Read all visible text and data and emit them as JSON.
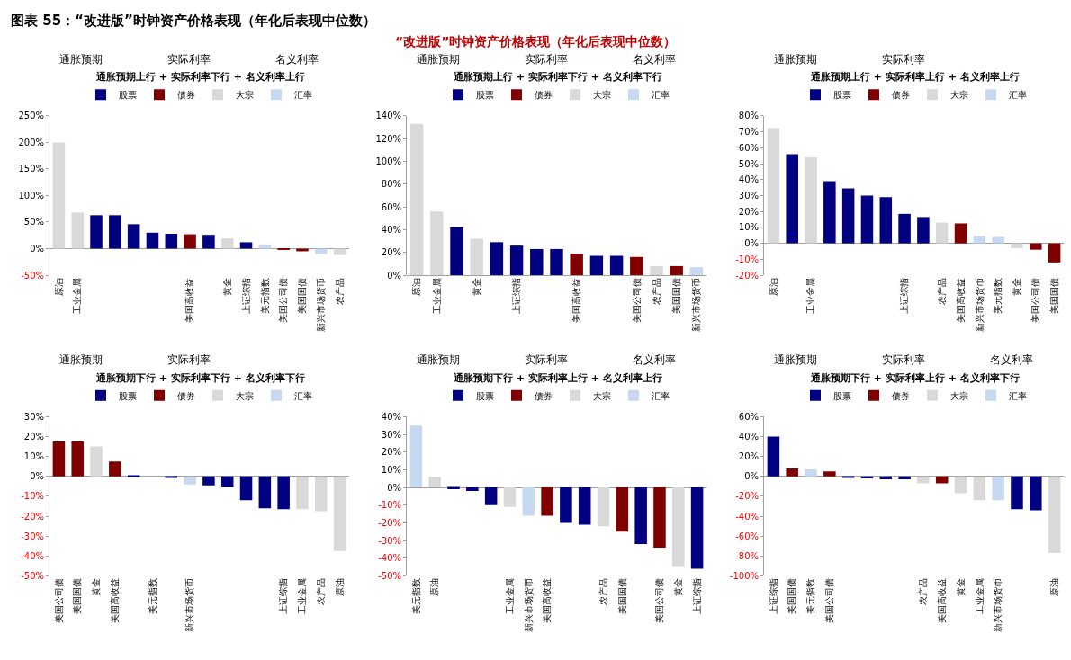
{
  "chart_data": [
    {
      "type": "other",
      "title": "图表 55：“改进版”时钟资产价格表现（年化后表现中位数）",
      "subtitle": "“改进版”时钟资产价格表现（年化后表现中位数）"
    },
    {
      "type": "bar",
      "title": "通胀预期上行 + 实际利率下行 + 名义利率上行",
      "annotations": [
        "通胀预期",
        "实际利率",
        "名义利率"
      ],
      "legend": "top",
      "categories": [
        "原油",
        "工业金属",
        null,
        null,
        null,
        null,
        null,
        "美国高收益",
        null,
        "黄金",
        "上证综指",
        "美元指数",
        "美国公司债",
        "美国国债",
        "新兴市场货币",
        "农产品"
      ],
      "series": [
        {
          "name": "股票",
          "color": "#000080",
          "values": [
            null,
            null,
            63,
            63,
            46,
            30,
            28,
            null,
            26,
            null,
            12,
            null,
            null,
            null,
            null,
            null
          ]
        },
        {
          "name": "债券",
          "color": "#800000",
          "values": [
            null,
            null,
            null,
            null,
            null,
            null,
            null,
            27,
            null,
            null,
            null,
            null,
            -2,
            -5,
            null,
            null
          ]
        },
        {
          "name": "大宗",
          "color": "#d9d9d9",
          "values": [
            200,
            68,
            null,
            null,
            null,
            null,
            null,
            null,
            null,
            19,
            null,
            null,
            null,
            null,
            null,
            -12
          ]
        },
        {
          "name": "汇率",
          "color": "#c6d9f0",
          "values": [
            null,
            null,
            null,
            null,
            null,
            null,
            null,
            null,
            null,
            null,
            null,
            8,
            null,
            null,
            -10,
            null
          ]
        }
      ],
      "ylim": [
        -50,
        250
      ],
      "yticks": [
        {
          "value": -50,
          "label": "-50%"
        },
        {
          "value": 0,
          "label": "0%"
        },
        {
          "value": 50,
          "label": "50%"
        },
        {
          "value": 100,
          "label": "100%"
        },
        {
          "value": 150,
          "label": "150%"
        },
        {
          "value": 200,
          "label": "200%"
        },
        {
          "value": 250,
          "label": "250%"
        }
      ]
    },
    {
      "type": "bar",
      "title": "通胀预期上行 + 实际利率下行 + 名义利率下行",
      "annotations": [
        "通胀预期",
        "实际利率",
        "名义利率"
      ],
      "legend": "top",
      "categories": [
        "原油",
        "工业金属",
        null,
        "黄金",
        null,
        "上证综指",
        null,
        null,
        "美国高收益",
        null,
        null,
        "美国公司债",
        "农产品",
        "美国国债",
        "新兴市场货币"
      ],
      "series": [
        {
          "name": "股票",
          "color": "#000080",
          "values": [
            null,
            null,
            42,
            null,
            29,
            26,
            23,
            23,
            null,
            17,
            17,
            null,
            null,
            null,
            null
          ]
        },
        {
          "name": "债券",
          "color": "#800000",
          "values": [
            null,
            null,
            null,
            null,
            null,
            null,
            null,
            null,
            19,
            null,
            null,
            16,
            null,
            8,
            null
          ]
        },
        {
          "name": "大宗",
          "color": "#d9d9d9",
          "values": [
            133,
            56,
            null,
            32,
            null,
            null,
            null,
            null,
            null,
            null,
            null,
            null,
            8,
            null,
            null
          ]
        },
        {
          "name": "汇率",
          "color": "#c6d9f0",
          "values": [
            null,
            null,
            null,
            null,
            null,
            null,
            null,
            null,
            null,
            null,
            null,
            null,
            null,
            null,
            7
          ]
        }
      ],
      "ylim": [
        0,
        140
      ],
      "yticks": [
        {
          "value": 0,
          "label": "0%"
        },
        {
          "value": 20,
          "label": "20%"
        },
        {
          "value": 40,
          "label": "40%"
        },
        {
          "value": 60,
          "label": "60%"
        },
        {
          "value": 80,
          "label": "80%"
        },
        {
          "value": 100,
          "label": "100%"
        },
        {
          "value": 120,
          "label": "120%"
        },
        {
          "value": 140,
          "label": "140%"
        }
      ]
    },
    {
      "type": "bar",
      "title": "通胀预期上行 + 实际利率上行 + 名义利率上行",
      "annotations": [
        "通胀预期",
        "实际利率"
      ],
      "legend": "top",
      "categories": [
        "原油",
        null,
        "工业金属",
        null,
        null,
        null,
        null,
        "上证综指",
        null,
        "农产品",
        "美国高收益",
        "新兴市场货币",
        "美元指数",
        "黄金",
        "美国公司债",
        "美国国债"
      ],
      "series": [
        {
          "name": "股票",
          "color": "#000080",
          "values": [
            null,
            56,
            null,
            39,
            34.5,
            30,
            29,
            18.5,
            16.5,
            null,
            null,
            null,
            null,
            null,
            null,
            null
          ]
        },
        {
          "name": "债券",
          "color": "#800000",
          "values": [
            null,
            null,
            null,
            null,
            null,
            null,
            null,
            null,
            null,
            null,
            12.5,
            null,
            null,
            null,
            -4,
            -12
          ]
        },
        {
          "name": "大宗",
          "color": "#d9d9d9",
          "values": [
            72.5,
            null,
            54,
            null,
            null,
            null,
            null,
            null,
            null,
            13,
            null,
            null,
            null,
            -3,
            null,
            null
          ]
        },
        {
          "name": "汇率",
          "color": "#c6d9f0",
          "values": [
            null,
            null,
            null,
            null,
            null,
            null,
            null,
            null,
            null,
            null,
            null,
            4.5,
            4,
            null,
            null,
            null
          ]
        }
      ],
      "ylim": [
        -20,
        80
      ],
      "yticks": [
        {
          "value": -20,
          "label": "-20%"
        },
        {
          "value": -10,
          "label": "-10%"
        },
        {
          "value": 0,
          "label": "0%"
        },
        {
          "value": 10,
          "label": "10%"
        },
        {
          "value": 20,
          "label": "20%"
        },
        {
          "value": 30,
          "label": "30%"
        },
        {
          "value": 40,
          "label": "40%"
        },
        {
          "value": 50,
          "label": "50%"
        },
        {
          "value": 60,
          "label": "60%"
        },
        {
          "value": 70,
          "label": "70%"
        },
        {
          "value": 80,
          "label": "80%"
        }
      ]
    },
    {
      "type": "bar",
      "title": "通胀预期下行 + 实际利率下行 + 名义利率下行",
      "annotations": [
        "通胀预期",
        "实际利率"
      ],
      "legend": "top",
      "categories": [
        "美国公司债",
        "美国国债",
        "黄金",
        "美国高收益",
        null,
        "美元指数",
        null,
        "新兴市场货币",
        null,
        null,
        null,
        null,
        "上证综指",
        "工业金属",
        "农产品",
        "原油"
      ],
      "series": [
        {
          "name": "股票",
          "color": "#000080",
          "values": [
            null,
            null,
            null,
            null,
            0.5,
            null,
            -0.5,
            null,
            -4.5,
            -5.5,
            -12,
            -16,
            -16.5,
            null,
            null,
            null
          ]
        },
        {
          "name": "债券",
          "color": "#800000",
          "values": [
            17.5,
            17.5,
            null,
            7.5,
            null,
            null,
            null,
            null,
            null,
            null,
            null,
            null,
            null,
            null,
            null,
            null
          ]
        },
        {
          "name": "大宗",
          "color": "#d9d9d9",
          "values": [
            null,
            null,
            15,
            null,
            null,
            null,
            null,
            null,
            null,
            null,
            null,
            null,
            null,
            -16.5,
            -17.5,
            -37.5
          ]
        },
        {
          "name": "汇率",
          "color": "#c6d9f0",
          "values": [
            null,
            null,
            null,
            null,
            null,
            null,
            null,
            -4,
            null,
            null,
            null,
            null,
            null,
            null,
            null,
            null
          ]
        }
      ],
      "ylim": [
        -50,
        30
      ],
      "yticks": [
        {
          "value": -50,
          "label": "-50%"
        },
        {
          "value": -40,
          "label": "-40%"
        },
        {
          "value": -30,
          "label": "-30%"
        },
        {
          "value": -20,
          "label": "-20%"
        },
        {
          "value": -10,
          "label": "-10%"
        },
        {
          "value": 0,
          "label": "0%"
        },
        {
          "value": 10,
          "label": "10%"
        },
        {
          "value": 20,
          "label": "20%"
        },
        {
          "value": 30,
          "label": "30%"
        }
      ]
    },
    {
      "type": "bar",
      "title": "通胀预期下行 + 实际利率上行 + 名义利率上行",
      "annotations": [
        "通胀预期",
        "实际利率",
        "名义利率"
      ],
      "legend": "top",
      "categories": [
        "美元指数",
        "原油",
        null,
        null,
        null,
        "工业金属",
        "新兴市场货币",
        "美国高收益",
        null,
        null,
        "农产品",
        "美国国债",
        null,
        "美国公司债",
        "黄金",
        "上证综指"
      ],
      "series": [
        {
          "name": "股票",
          "color": "#000080",
          "values": [
            null,
            null,
            -1,
            -2,
            -10,
            null,
            null,
            null,
            -20,
            -21,
            null,
            null,
            -32,
            null,
            null,
            -46
          ]
        },
        {
          "name": "债券",
          "color": "#800000",
          "values": [
            null,
            null,
            null,
            null,
            null,
            null,
            null,
            -16,
            null,
            null,
            null,
            -25,
            null,
            -34,
            null,
            null
          ]
        },
        {
          "name": "大宗",
          "color": "#d9d9d9",
          "values": [
            null,
            6,
            null,
            null,
            null,
            -11,
            null,
            null,
            null,
            null,
            -22,
            null,
            null,
            null,
            -45,
            null
          ]
        },
        {
          "name": "汇率",
          "color": "#c6d9f0",
          "values": [
            35,
            null,
            null,
            null,
            null,
            null,
            -16,
            null,
            null,
            null,
            null,
            null,
            null,
            null,
            null,
            null
          ]
        }
      ],
      "ylim": [
        -50,
        40
      ],
      "yticks": [
        {
          "value": -50,
          "label": "-50%"
        },
        {
          "value": -40,
          "label": "-40%"
        },
        {
          "value": -30,
          "label": "-30%"
        },
        {
          "value": -20,
          "label": "-20%"
        },
        {
          "value": -10,
          "label": "-10%"
        },
        {
          "value": 0,
          "label": "0%"
        },
        {
          "value": 10,
          "label": "10%"
        },
        {
          "value": 20,
          "label": "20%"
        },
        {
          "value": 30,
          "label": "30%"
        },
        {
          "value": 40,
          "label": "40%"
        }
      ]
    },
    {
      "type": "bar",
      "title": "通胀预期下行 + 实际利率上行 + 名义利率下行",
      "annotations": [
        "通胀预期",
        "实际利率",
        "名义利率"
      ],
      "legend": "top",
      "categories": [
        "上证综指",
        "美国国债",
        "美元指数",
        "美国公司债",
        null,
        null,
        null,
        null,
        "农产品",
        "美国高收益",
        "黄金",
        "工业金属",
        "新兴市场货币",
        null,
        null,
        "原油"
      ],
      "series": [
        {
          "name": "股票",
          "color": "#000080",
          "values": [
            40,
            null,
            null,
            null,
            -1,
            -2,
            -3,
            -3,
            null,
            null,
            null,
            null,
            null,
            -33,
            -34,
            null
          ]
        },
        {
          "name": "债券",
          "color": "#800000",
          "values": [
            null,
            8,
            null,
            5,
            null,
            null,
            null,
            null,
            null,
            -7,
            null,
            null,
            null,
            null,
            null,
            null
          ]
        },
        {
          "name": "大宗",
          "color": "#d9d9d9",
          "values": [
            null,
            null,
            null,
            null,
            null,
            null,
            null,
            null,
            -7,
            null,
            -17,
            -24,
            null,
            null,
            null,
            -77
          ]
        },
        {
          "name": "汇率",
          "color": "#c6d9f0",
          "values": [
            null,
            null,
            7,
            null,
            null,
            null,
            null,
            null,
            null,
            null,
            null,
            null,
            -24,
            null,
            null,
            null
          ]
        }
      ],
      "ylim": [
        -100,
        60
      ],
      "yticks": [
        {
          "value": -100,
          "label": "-100%"
        },
        {
          "value": -80,
          "label": "-80%"
        },
        {
          "value": -60,
          "label": "-60%"
        },
        {
          "value": -40,
          "label": "-40%"
        },
        {
          "value": -20,
          "label": "-20%"
        },
        {
          "value": 0,
          "label": "0%"
        },
        {
          "value": 20,
          "label": "20%"
        },
        {
          "value": 40,
          "label": "40%"
        },
        {
          "value": 60,
          "label": "60%"
        }
      ]
    }
  ]
}
